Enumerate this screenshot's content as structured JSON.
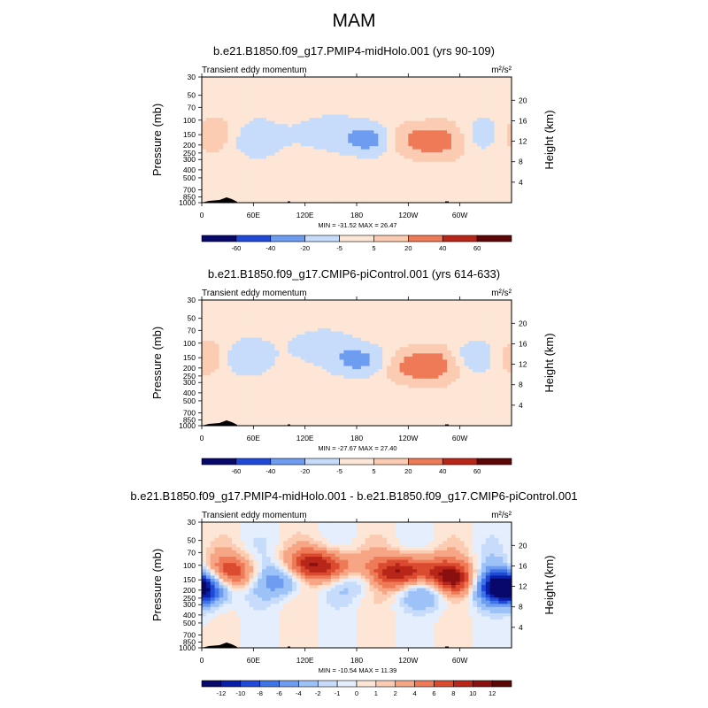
{
  "page": {
    "title": "MAM"
  },
  "colors": {
    "scale": [
      "#08086b",
      "#0a1fa8",
      "#1f49d6",
      "#3f74e6",
      "#6d9cf0",
      "#9cc2f7",
      "#c6dcfa",
      "#e4eefc",
      "#fde6d6",
      "#fbcbb2",
      "#f6a585",
      "#ee7a57",
      "#db4b30",
      "#b8261a",
      "#8a1010",
      "#5c0606"
    ]
  },
  "chart_data": [
    {
      "type": "heatmap",
      "title": "b.e21.B1850.f09_g17.PMIP4-midHolo.001 (yrs 90-109)",
      "left_label": "Transient eddy momentum",
      "unit_label": "m²/s²",
      "ylabel": "Pressure (mb)",
      "ylabel_right": "Height (km)",
      "xticks": [
        "0",
        "60E",
        "120E",
        "180",
        "120W",
        "60W"
      ],
      "yticks": [
        "30",
        "50",
        "70",
        "100",
        "150",
        "200",
        "250",
        "300",
        "400",
        "500",
        "700",
        "850",
        "1000"
      ],
      "yticks_right": [
        "20",
        "16",
        "12",
        "8",
        "4"
      ],
      "stats": "MIN = -31.52   MAX =  26.47",
      "levels": [
        "-60",
        "-40",
        "-20",
        "-5",
        "5",
        "20",
        "40",
        "60"
      ],
      "min": -31.52,
      "max": 26.47,
      "features": [
        {
          "lon": 10,
          "p": 150,
          "value": 15
        },
        {
          "lon": 60,
          "p": 170,
          "value": -15
        },
        {
          "lon": 110,
          "p": 150,
          "value": -5
        },
        {
          "lon": 140,
          "p": 140,
          "value": -10
        },
        {
          "lon": 195,
          "p": 170,
          "value": -31
        },
        {
          "lon": 240,
          "p": 170,
          "value": 20
        },
        {
          "lon": 275,
          "p": 180,
          "value": 26
        },
        {
          "lon": 325,
          "p": 150,
          "value": -12
        },
        {
          "lon": 170,
          "p": 400,
          "value": 5
        },
        {
          "lon": 10,
          "p": 50,
          "value": -5
        }
      ]
    },
    {
      "type": "heatmap",
      "title": "b.e21.B1850.f09_g17.CMIP6-piControl.001 (yrs 614-633)",
      "left_label": "Transient eddy momentum",
      "unit_label": "m²/s²",
      "ylabel": "Pressure (mb)",
      "ylabel_right": "Height (km)",
      "xticks": [
        "0",
        "60E",
        "120E",
        "180",
        "120W",
        "60W"
      ],
      "yticks": [
        "30",
        "50",
        "70",
        "100",
        "150",
        "200",
        "250",
        "300",
        "400",
        "500",
        "700",
        "850",
        "1000"
      ],
      "yticks_right": [
        "20",
        "16",
        "12",
        "8",
        "4"
      ],
      "stats": "MIN = -27.67   MAX =  27.40",
      "levels": [
        "-60",
        "-40",
        "-20",
        "-5",
        "5",
        "20",
        "40",
        "60"
      ],
      "min": -27.67,
      "max": 27.4,
      "features": [
        {
          "lon": 5,
          "p": 150,
          "value": 18
        },
        {
          "lon": 45,
          "p": 150,
          "value": -20
        },
        {
          "lon": 130,
          "p": 110,
          "value": -15
        },
        {
          "lon": 185,
          "p": 160,
          "value": -27
        },
        {
          "lon": 245,
          "p": 190,
          "value": 22
        },
        {
          "lon": 270,
          "p": 180,
          "value": 27
        },
        {
          "lon": 315,
          "p": 150,
          "value": -18
        },
        {
          "lon": 170,
          "p": 400,
          "value": 5
        }
      ]
    },
    {
      "type": "heatmap",
      "title": "b.e21.B1850.f09_g17.PMIP4-midHolo.001 - b.e21.B1850.f09_g17.CMIP6-piControl.001",
      "left_label": "Transient eddy momentum",
      "unit_label": "m²/s²",
      "ylabel": "Pressure (mb)",
      "ylabel_right": "Height (km)",
      "xticks": [
        "0",
        "60E",
        "120E",
        "180",
        "120W",
        "60W"
      ],
      "yticks": [
        "30",
        "50",
        "70",
        "100",
        "150",
        "200",
        "250",
        "300",
        "400",
        "500",
        "700",
        "850",
        "1000"
      ],
      "yticks_right": [
        "20",
        "16",
        "12",
        "8",
        "4"
      ],
      "stats": "MIN = -10.54   MAX =  11.39",
      "levels": [
        "-12",
        "-10",
        "-8",
        "-6",
        "-4",
        "-2",
        "-1",
        "0",
        "1",
        "2",
        "4",
        "6",
        "8",
        "10",
        "12"
      ],
      "min": -10.54,
      "max": 11.39,
      "features": [
        {
          "lon": 0,
          "p": 200,
          "value": -10
        },
        {
          "lon": 40,
          "p": 120,
          "value": 7
        },
        {
          "lon": 95,
          "p": 150,
          "value": -6
        },
        {
          "lon": 130,
          "p": 100,
          "value": 8
        },
        {
          "lon": 160,
          "p": 110,
          "value": 6
        },
        {
          "lon": 185,
          "p": 150,
          "value": -4
        },
        {
          "lon": 225,
          "p": 130,
          "value": 8
        },
        {
          "lon": 250,
          "p": 110,
          "value": 6
        },
        {
          "lon": 265,
          "p": 200,
          "value": -6
        },
        {
          "lon": 290,
          "p": 150,
          "value": 11
        },
        {
          "lon": 345,
          "p": 170,
          "value": -8
        }
      ]
    }
  ]
}
